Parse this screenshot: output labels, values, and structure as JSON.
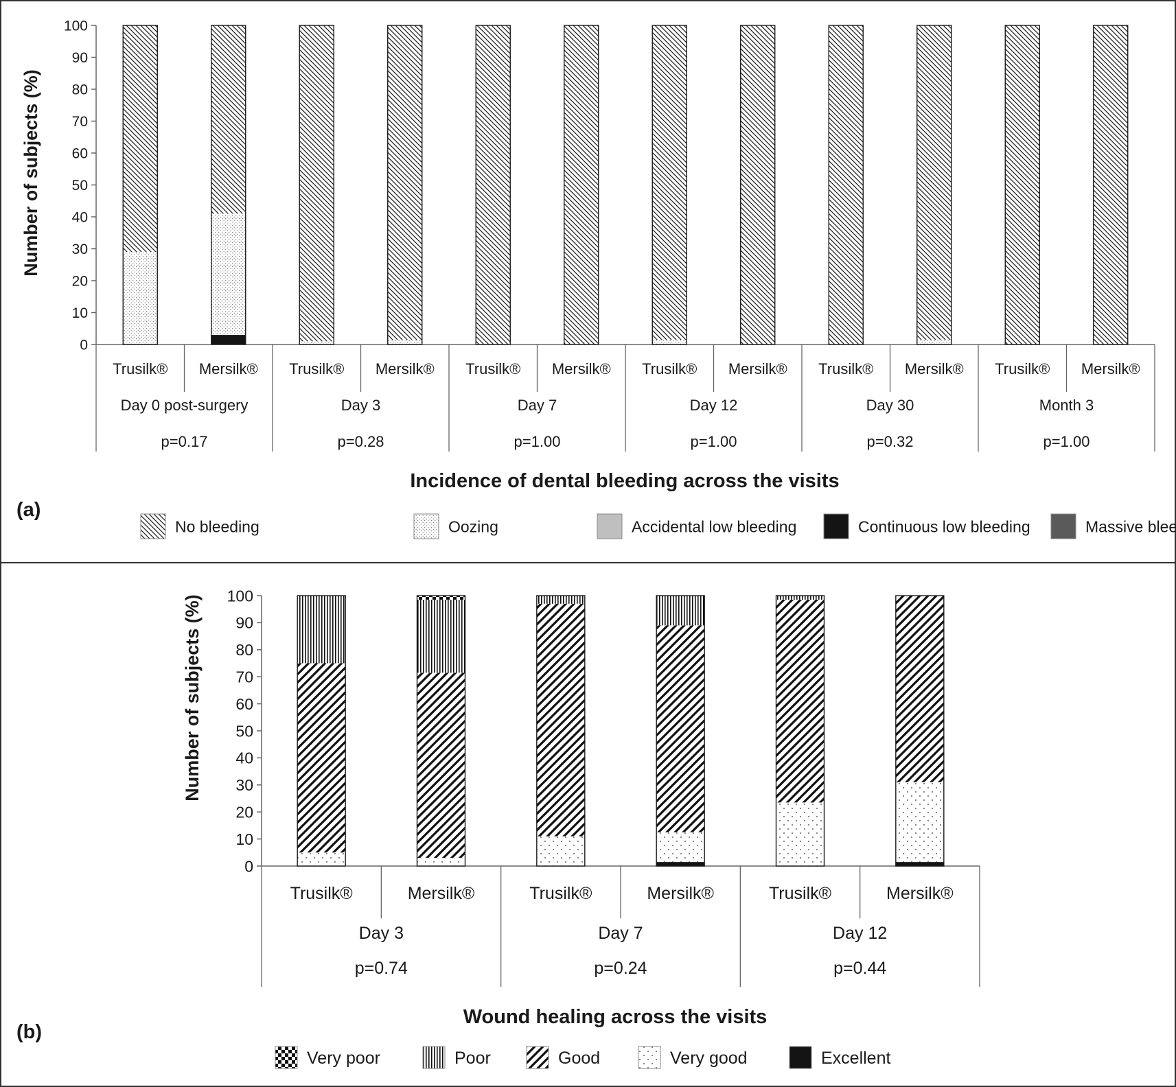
{
  "panels": [
    {
      "id": "a",
      "panel_label": "(a)",
      "ylabel": "Number of subjects (%)",
      "xlabel": "Incidence of dental bleeding across the visits",
      "ylim": [
        0,
        100
      ],
      "yticks": [
        0,
        10,
        20,
        30,
        40,
        50,
        60,
        70,
        80,
        90,
        100
      ],
      "pattern_keys": [
        "diag-dense",
        "dots-dense",
        "solid-lightgray",
        "solid-black",
        "solid-darkgray"
      ],
      "legend": [
        "No bleeding",
        "Oozing",
        "Accidental low bleeding",
        "Continuous low bleeding",
        "Massive bleeding"
      ],
      "groups": [
        {
          "label": "Day 0 post-surgery",
          "p": "p=0.17"
        },
        {
          "label": "Day 3",
          "p": "p=0.28"
        },
        {
          "label": "Day 7",
          "p": "p=1.00"
        },
        {
          "label": "Day 12",
          "p": "p=1.00"
        },
        {
          "label": "Day 30",
          "p": "p=0.32"
        },
        {
          "label": "Month 3",
          "p": "p=1.00"
        }
      ],
      "bars": [
        {
          "label": "Trusilk®",
          "group": 0,
          "values": [
            71,
            29,
            0,
            0,
            0
          ]
        },
        {
          "label": "Mersilk®",
          "group": 0,
          "values": [
            59,
            38,
            0,
            3,
            0
          ]
        },
        {
          "label": "Trusilk®",
          "group": 1,
          "values": [
            99,
            1,
            0,
            0,
            0
          ]
        },
        {
          "label": "Mersilk®",
          "group": 1,
          "values": [
            98.5,
            1.5,
            0,
            0,
            0
          ]
        },
        {
          "label": "Trusilk®",
          "group": 2,
          "values": [
            100,
            0,
            0,
            0,
            0
          ]
        },
        {
          "label": "Mersilk®",
          "group": 2,
          "values": [
            100,
            0,
            0,
            0,
            0
          ]
        },
        {
          "label": "Trusilk®",
          "group": 3,
          "values": [
            98.5,
            1.5,
            0,
            0,
            0
          ]
        },
        {
          "label": "Mersilk®",
          "group": 3,
          "values": [
            100,
            0,
            0,
            0,
            0
          ]
        },
        {
          "label": "Trusilk®",
          "group": 4,
          "values": [
            100,
            0,
            0,
            0,
            0
          ]
        },
        {
          "label": "Mersilk®",
          "group": 4,
          "values": [
            98.5,
            1.5,
            0,
            0,
            0
          ]
        },
        {
          "label": "Trusilk®",
          "group": 5,
          "values": [
            100,
            0,
            0,
            0,
            0
          ]
        },
        {
          "label": "Mersilk®",
          "group": 5,
          "values": [
            100,
            0,
            0,
            0,
            0
          ]
        }
      ]
    },
    {
      "id": "b",
      "panel_label": "(b)",
      "ylabel": "Number of subjects (%)",
      "xlabel": "Wound healing across the visits",
      "ylim": [
        0,
        100
      ],
      "yticks": [
        0,
        10,
        20,
        30,
        40,
        50,
        60,
        70,
        80,
        90,
        100
      ],
      "pattern_keys": [
        "checker",
        "vlines",
        "diag-wide",
        "dots-sparse",
        "solid-black"
      ],
      "legend": [
        "Very poor",
        "Poor",
        "Good",
        "Very good",
        "Excellent"
      ],
      "groups": [
        {
          "label": "Day 3",
          "p": "p=0.74"
        },
        {
          "label": "Day 7",
          "p": "p=0.24"
        },
        {
          "label": "Day 12",
          "p": "p=0.44"
        }
      ],
      "bars": [
        {
          "label": "Trusilk®",
          "group": 0,
          "values": [
            0,
            25,
            70,
            5,
            0
          ]
        },
        {
          "label": "Mersilk®",
          "group": 0,
          "values": [
            1.5,
            27,
            68.5,
            3,
            0
          ]
        },
        {
          "label": "Trusilk®",
          "group": 1,
          "values": [
            0,
            3,
            86,
            11,
            0
          ]
        },
        {
          "label": "Mersilk®",
          "group": 1,
          "values": [
            0,
            11,
            76.5,
            11,
            1.5
          ]
        },
        {
          "label": "Trusilk®",
          "group": 2,
          "values": [
            0,
            1.5,
            75,
            23.5,
            0
          ]
        },
        {
          "label": "Mersilk®",
          "group": 2,
          "values": [
            0,
            0,
            69,
            29.5,
            1.5
          ]
        }
      ]
    }
  ],
  "chart_data": [
    {
      "type": "bar",
      "stacked": true,
      "ylabel": "Number of subjects (%)",
      "xlabel": "Incidence of dental bleeding across the visits",
      "ylim": [
        0,
        100
      ],
      "categories": [
        "Trusilk®",
        "Mersilk®",
        "Trusilk®",
        "Mersilk®",
        "Trusilk®",
        "Mersilk®",
        "Trusilk®",
        "Mersilk®",
        "Trusilk®",
        "Mersilk®",
        "Trusilk®",
        "Mersilk®"
      ],
      "category_groups": [
        "Day 0 post-surgery",
        "Day 3",
        "Day 7",
        "Day 12",
        "Day 30",
        "Month 3"
      ],
      "p_values": [
        "p=0.17",
        "p=0.28",
        "p=1.00",
        "p=1.00",
        "p=0.32",
        "p=1.00"
      ],
      "series": [
        {
          "name": "No bleeding",
          "values": [
            71,
            59,
            99,
            98.5,
            100,
            100,
            98.5,
            100,
            100,
            98.5,
            100,
            100
          ]
        },
        {
          "name": "Oozing",
          "values": [
            29,
            38,
            1,
            1.5,
            0,
            0,
            1.5,
            0,
            0,
            1.5,
            0,
            0
          ]
        },
        {
          "name": "Accidental low bleeding",
          "values": [
            0,
            0,
            0,
            0,
            0,
            0,
            0,
            0,
            0,
            0,
            0,
            0
          ]
        },
        {
          "name": "Continuous low bleeding",
          "values": [
            0,
            3,
            0,
            0,
            0,
            0,
            0,
            0,
            0,
            0,
            0,
            0
          ]
        },
        {
          "name": "Massive bleeding",
          "values": [
            0,
            0,
            0,
            0,
            0,
            0,
            0,
            0,
            0,
            0,
            0,
            0
          ]
        }
      ],
      "legend_position": "bottom",
      "grid": false
    },
    {
      "type": "bar",
      "stacked": true,
      "ylabel": "Number of subjects (%)",
      "xlabel": "Wound healing across the visits",
      "ylim": [
        0,
        100
      ],
      "categories": [
        "Trusilk®",
        "Mersilk®",
        "Trusilk®",
        "Mersilk®",
        "Trusilk®",
        "Mersilk®"
      ],
      "category_groups": [
        "Day 3",
        "Day 7",
        "Day 12"
      ],
      "p_values": [
        "p=0.74",
        "p=0.24",
        "p=0.44"
      ],
      "series": [
        {
          "name": "Very poor",
          "values": [
            0,
            1.5,
            0,
            0,
            0,
            0
          ]
        },
        {
          "name": "Poor",
          "values": [
            25,
            27,
            3,
            11,
            1.5,
            0
          ]
        },
        {
          "name": "Good",
          "values": [
            70,
            68.5,
            86,
            76.5,
            75,
            69
          ]
        },
        {
          "name": "Very good",
          "values": [
            5,
            3,
            11,
            11,
            23.5,
            29.5
          ]
        },
        {
          "name": "Excellent",
          "values": [
            0,
            0,
            0,
            1.5,
            0,
            1.5
          ]
        }
      ],
      "legend_position": "bottom",
      "grid": false
    }
  ]
}
